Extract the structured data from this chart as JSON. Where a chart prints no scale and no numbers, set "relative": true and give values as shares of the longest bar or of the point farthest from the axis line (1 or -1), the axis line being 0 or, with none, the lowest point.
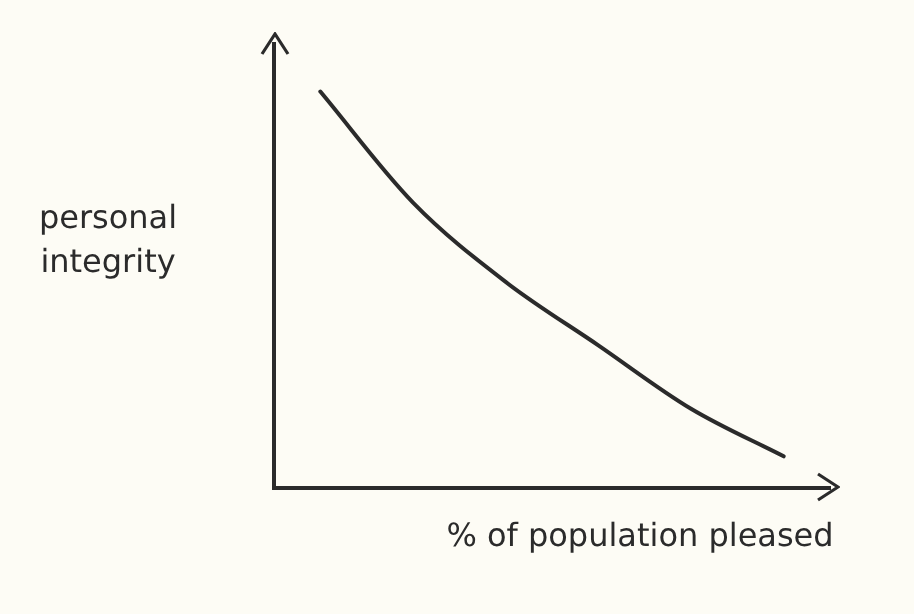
{
  "chart_data": {
    "type": "line",
    "relative": true,
    "xlabel": "% of population pleased",
    "ylabel": "personal integrity",
    "categories": [
      null,
      null,
      null,
      null,
      null,
      null
    ],
    "series": [
      {
        "color": "#2b2b2b",
        "values": [
          1,
          0.72,
          0.52,
          0.36,
          0.2,
          0.08
        ]
      }
    ],
    "marker": "none",
    "line_style": "solid"
  }
}
